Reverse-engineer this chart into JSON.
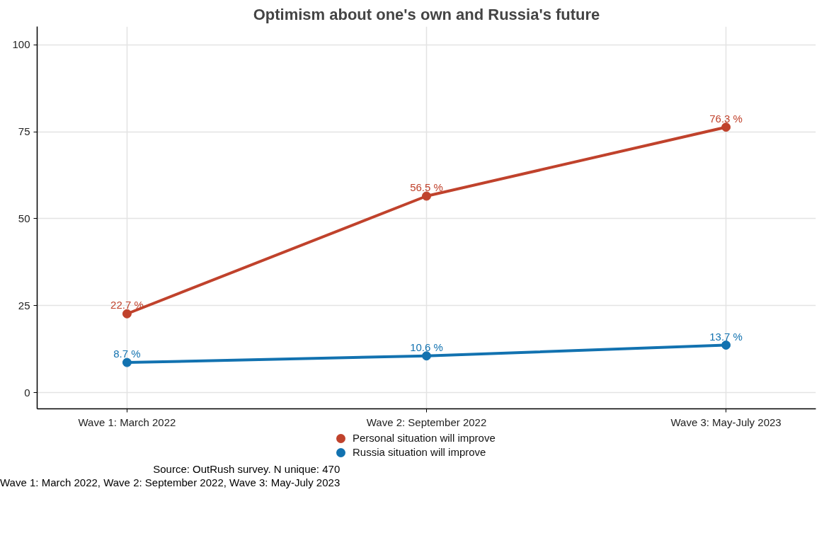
{
  "chart_data": {
    "type": "line",
    "title": "Optimism about one's own and Russia's future",
    "categories": [
      "Wave 1: March 2022",
      "Wave 2: September 2022",
      "Wave 3: May-July 2023"
    ],
    "series": [
      {
        "name": "Personal situation will improve",
        "color": "#c0422c",
        "values": [
          22.7,
          56.5,
          76.3
        ],
        "value_labels": [
          "22.7 %",
          "56.5 %",
          "76.3 %"
        ]
      },
      {
        "name": "Russia situation will improve",
        "color": "#1272b0",
        "values": [
          8.7,
          10.6,
          13.7
        ],
        "value_labels": [
          "8.7 %",
          "10.6 %",
          "13.7 %"
        ]
      }
    ],
    "ylim": [
      -4.6,
      105.2
    ],
    "yticks": [
      0,
      25,
      50,
      75,
      100
    ],
    "grid": true,
    "legend": "bottom",
    "marker": "circle",
    "line_style": "solid",
    "annotations": [
      "Source: OutRush survey. N unique: 470",
      "Wave 1: March 2022, Wave 2: September 2022, Wave 3: May-July 2023"
    ]
  }
}
